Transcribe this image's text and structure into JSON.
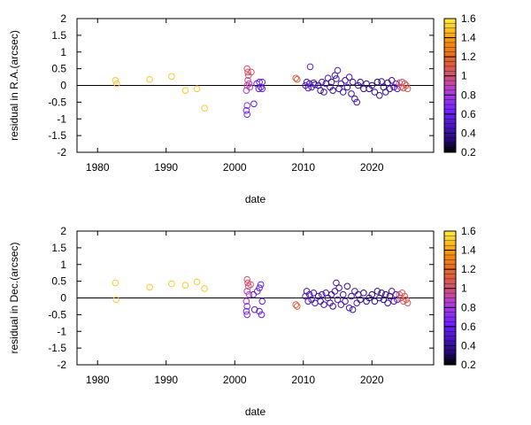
{
  "chart_data": [
    {
      "type": "scatter",
      "title": "",
      "xlabel": "date",
      "ylabel": "residual in R.A.(arcsec)",
      "xlim": [
        1977,
        2029
      ],
      "ylim": [
        -2,
        2
      ],
      "xticks": [
        {
          "v": 1980,
          "label": "1980"
        },
        {
          "v": 1990,
          "label": "1990"
        },
        {
          "v": 2000,
          "label": "2000"
        },
        {
          "v": 2010,
          "label": "2010"
        },
        {
          "v": 2020,
          "label": "2020"
        }
      ],
      "yticks": [
        {
          "v": 2,
          "label": "2"
        },
        {
          "v": 1.5,
          "label": "1.5"
        },
        {
          "v": 1,
          "label": "1"
        },
        {
          "v": 0.5,
          "label": "0.5"
        },
        {
          "v": 0,
          "label": "0"
        },
        {
          "v": -0.5,
          "label": "-0.5"
        },
        {
          "v": -1,
          "label": "-1"
        },
        {
          "v": -1.5,
          "label": "-1.5"
        },
        {
          "v": -2,
          "label": "-2"
        }
      ],
      "reference_line": 0,
      "marker": "open-circle",
      "colorbar": {
        "range": [
          0.2,
          1.6
        ],
        "ticks": [
          {
            "v": 0.2,
            "label": "0.2"
          },
          {
            "v": 0.4,
            "label": "0.4"
          },
          {
            "v": 0.6,
            "label": "0.6"
          },
          {
            "v": 0.8,
            "label": "0.8"
          },
          {
            "v": 1.0,
            "label": "1"
          },
          {
            "v": 1.2,
            "label": "1.2"
          },
          {
            "v": 1.4,
            "label": "1.4"
          },
          {
            "v": 1.6,
            "label": "1.6"
          }
        ]
      },
      "points": [
        [
          1982.6,
          0.15,
          1.5
        ],
        [
          1982.8,
          0.05,
          1.5
        ],
        [
          1987.6,
          0.18,
          1.5
        ],
        [
          1990.8,
          0.27,
          1.5
        ],
        [
          1992.8,
          -0.15,
          1.5
        ],
        [
          1994.5,
          -0.1,
          1.5
        ],
        [
          1995.6,
          -0.68,
          1.5
        ],
        [
          2001.8,
          0.5,
          1.0
        ],
        [
          2001.9,
          0.4,
          1.05
        ],
        [
          2002.0,
          0.3,
          1.0
        ],
        [
          2001.9,
          0.15,
          0.95
        ],
        [
          2002.1,
          0.05,
          0.9
        ],
        [
          2001.8,
          0.0,
          0.95
        ],
        [
          2002.2,
          -0.05,
          0.9
        ],
        [
          2001.7,
          -0.15,
          0.8
        ],
        [
          2001.8,
          -0.6,
          0.7
        ],
        [
          2001.7,
          -0.75,
          0.65
        ],
        [
          2001.8,
          -0.87,
          0.65
        ],
        [
          2002.4,
          0.4,
          1.05
        ],
        [
          2002.8,
          -0.55,
          0.55
        ],
        [
          2003.2,
          0.05,
          0.6
        ],
        [
          2003.5,
          -0.1,
          0.55
        ],
        [
          2003.8,
          -0.05,
          0.6
        ],
        [
          2003.6,
          0.1,
          0.55
        ],
        [
          2004.0,
          0.1,
          0.6
        ],
        [
          2004.0,
          -0.1,
          0.55
        ],
        [
          2008.9,
          0.22,
          1.1
        ],
        [
          2009.1,
          0.18,
          1.15
        ],
        [
          2010.3,
          0.0,
          0.5
        ],
        [
          2010.5,
          0.1,
          0.45
        ],
        [
          2010.7,
          -0.08,
          0.45
        ],
        [
          2010.9,
          0.05,
          0.5
        ],
        [
          2011.0,
          0.56,
          0.55
        ],
        [
          2011.2,
          -0.05,
          0.5
        ],
        [
          2011.5,
          0.08,
          0.45
        ],
        [
          2011.7,
          0.02,
          0.45
        ],
        [
          2012.2,
          0.0,
          0.4
        ],
        [
          2012.5,
          -0.15,
          0.4
        ],
        [
          2012.7,
          0.1,
          0.45
        ],
        [
          2013.0,
          -0.2,
          0.4
        ],
        [
          2013.3,
          0.05,
          0.45
        ],
        [
          2013.6,
          0.22,
          0.5
        ],
        [
          2013.9,
          -0.05,
          0.45
        ],
        [
          2014.1,
          0.1,
          0.4
        ],
        [
          2014.3,
          -0.15,
          0.4
        ],
        [
          2014.6,
          0.3,
          0.45
        ],
        [
          2014.8,
          0.2,
          0.45
        ],
        [
          2015.0,
          0.45,
          0.5
        ],
        [
          2015.2,
          -0.1,
          0.4
        ],
        [
          2015.5,
          0.05,
          0.45
        ],
        [
          2015.8,
          -0.2,
          0.4
        ],
        [
          2016.1,
          0.15,
          0.45
        ],
        [
          2016.4,
          -0.05,
          0.4
        ],
        [
          2016.7,
          0.25,
          0.45
        ],
        [
          2017.0,
          -0.25,
          0.4
        ],
        [
          2017.2,
          0.1,
          0.4
        ],
        [
          2017.5,
          -0.4,
          0.45
        ],
        [
          2017.8,
          -0.5,
          0.45
        ],
        [
          2018.0,
          0.0,
          0.4
        ],
        [
          2018.3,
          0.1,
          0.4
        ],
        [
          2018.8,
          -0.1,
          0.35
        ],
        [
          2019.2,
          0.05,
          0.35
        ],
        [
          2019.6,
          -0.1,
          0.35
        ],
        [
          2020.0,
          0.0,
          0.35
        ],
        [
          2020.4,
          -0.2,
          0.35
        ],
        [
          2020.8,
          0.1,
          0.35
        ],
        [
          2021.1,
          -0.3,
          0.4
        ],
        [
          2021.4,
          0.12,
          0.4
        ],
        [
          2021.7,
          -0.05,
          0.35
        ],
        [
          2022.0,
          -0.2,
          0.35
        ],
        [
          2022.3,
          0.08,
          0.35
        ],
        [
          2022.6,
          -0.1,
          0.4
        ],
        [
          2022.9,
          0.15,
          0.4
        ],
        [
          2023.2,
          -0.05,
          0.45
        ],
        [
          2023.5,
          0.05,
          0.5
        ],
        [
          2023.7,
          -0.1,
          0.55
        ],
        [
          2024.0,
          0.08,
          1.05
        ],
        [
          2024.2,
          -0.05,
          1.1
        ],
        [
          2024.4,
          0.1,
          1.05
        ],
        [
          2024.6,
          -0.08,
          1.1
        ],
        [
          2024.8,
          0.05,
          1.05
        ],
        [
          2025.0,
          0.0,
          1.1
        ],
        [
          2025.2,
          -0.1,
          1.05
        ]
      ]
    },
    {
      "type": "scatter",
      "title": "",
      "xlabel": "date",
      "ylabel": "residual in Dec.(arcsec)",
      "xlim": [
        1977,
        2029
      ],
      "ylim": [
        -2,
        2
      ],
      "xticks": [
        {
          "v": 1980,
          "label": "1980"
        },
        {
          "v": 1990,
          "label": "1990"
        },
        {
          "v": 2000,
          "label": "2000"
        },
        {
          "v": 2010,
          "label": "2010"
        },
        {
          "v": 2020,
          "label": "2020"
        }
      ],
      "yticks": [
        {
          "v": 2,
          "label": "2"
        },
        {
          "v": 1.5,
          "label": "1.5"
        },
        {
          "v": 1,
          "label": "1"
        },
        {
          "v": 0.5,
          "label": "0.5"
        },
        {
          "v": 0,
          "label": "0"
        },
        {
          "v": -0.5,
          "label": "-0.5"
        },
        {
          "v": -1,
          "label": "-1"
        },
        {
          "v": -1.5,
          "label": "-1.5"
        },
        {
          "v": -2,
          "label": "-2"
        }
      ],
      "reference_line": 0,
      "marker": "open-circle",
      "colorbar": {
        "range": [
          0.2,
          1.6
        ],
        "ticks": [
          {
            "v": 0.2,
            "label": "0.2"
          },
          {
            "v": 0.4,
            "label": "0.4"
          },
          {
            "v": 0.6,
            "label": "0.6"
          },
          {
            "v": 0.8,
            "label": "0.8"
          },
          {
            "v": 1.0,
            "label": "1"
          },
          {
            "v": 1.2,
            "label": "1.2"
          },
          {
            "v": 1.4,
            "label": "1.4"
          },
          {
            "v": 1.6,
            "label": "1.6"
          }
        ]
      },
      "points": [
        [
          1982.6,
          0.45,
          1.5
        ],
        [
          1982.7,
          -0.05,
          1.5
        ],
        [
          1987.6,
          0.32,
          1.5
        ],
        [
          1990.8,
          0.42,
          1.5
        ],
        [
          1992.8,
          0.38,
          1.5
        ],
        [
          1994.5,
          0.48,
          1.5
        ],
        [
          1995.6,
          0.28,
          1.5
        ],
        [
          2001.8,
          0.55,
          1.05
        ],
        [
          2001.9,
          0.45,
          1.0
        ],
        [
          2002.0,
          0.35,
          1.0
        ],
        [
          2001.8,
          0.2,
          0.9
        ],
        [
          2002.1,
          0.1,
          0.9
        ],
        [
          2001.7,
          -0.1,
          0.8
        ],
        [
          2001.8,
          -0.25,
          0.7
        ],
        [
          2001.7,
          -0.4,
          0.65
        ],
        [
          2001.8,
          -0.5,
          0.65
        ],
        [
          2002.3,
          0.4,
          1.05
        ],
        [
          2002.7,
          0.1,
          0.55
        ],
        [
          2002.9,
          -0.35,
          0.55
        ],
        [
          2003.3,
          0.2,
          0.6
        ],
        [
          2003.6,
          0.3,
          0.55
        ],
        [
          2003.8,
          0.4,
          0.6
        ],
        [
          2003.6,
          -0.4,
          0.55
        ],
        [
          2003.9,
          -0.5,
          0.6
        ],
        [
          2004.0,
          -0.1,
          0.55
        ],
        [
          2008.9,
          -0.2,
          1.1
        ],
        [
          2009.1,
          -0.25,
          1.15
        ],
        [
          2010.3,
          0.05,
          0.5
        ],
        [
          2010.5,
          0.2,
          0.45
        ],
        [
          2010.7,
          -0.1,
          0.45
        ],
        [
          2010.9,
          0.1,
          0.5
        ],
        [
          2011.2,
          -0.05,
          0.5
        ],
        [
          2011.5,
          0.15,
          0.45
        ],
        [
          2011.7,
          -0.15,
          0.45
        ],
        [
          2012.2,
          0.05,
          0.4
        ],
        [
          2012.5,
          -0.1,
          0.4
        ],
        [
          2012.7,
          0.1,
          0.45
        ],
        [
          2013.0,
          -0.2,
          0.4
        ],
        [
          2013.3,
          0.15,
          0.45
        ],
        [
          2013.6,
          0.0,
          0.5
        ],
        [
          2013.9,
          -0.15,
          0.45
        ],
        [
          2014.1,
          0.1,
          0.4
        ],
        [
          2014.3,
          -0.25,
          0.4
        ],
        [
          2014.6,
          0.2,
          0.45
        ],
        [
          2014.8,
          0.45,
          0.45
        ],
        [
          2015.0,
          -0.05,
          0.5
        ],
        [
          2015.2,
          0.3,
          0.4
        ],
        [
          2015.5,
          -0.2,
          0.45
        ],
        [
          2015.8,
          0.1,
          0.4
        ],
        [
          2016.1,
          -0.1,
          0.45
        ],
        [
          2016.4,
          0.35,
          0.4
        ],
        [
          2016.7,
          -0.3,
          0.45
        ],
        [
          2017.0,
          0.05,
          0.4
        ],
        [
          2017.2,
          -0.35,
          0.4
        ],
        [
          2017.5,
          0.2,
          0.45
        ],
        [
          2017.8,
          -0.15,
          0.45
        ],
        [
          2018.0,
          0.1,
          0.4
        ],
        [
          2018.3,
          -0.05,
          0.4
        ],
        [
          2018.8,
          0.15,
          0.35
        ],
        [
          2019.2,
          -0.1,
          0.35
        ],
        [
          2019.6,
          0.0,
          0.35
        ],
        [
          2020.0,
          0.1,
          0.35
        ],
        [
          2020.4,
          -0.1,
          0.35
        ],
        [
          2020.8,
          0.2,
          0.35
        ],
        [
          2021.1,
          0.0,
          0.4
        ],
        [
          2021.4,
          0.15,
          0.4
        ],
        [
          2021.7,
          -0.05,
          0.35
        ],
        [
          2022.0,
          0.1,
          0.35
        ],
        [
          2022.3,
          -0.15,
          0.35
        ],
        [
          2022.6,
          0.05,
          0.4
        ],
        [
          2022.9,
          0.2,
          0.4
        ],
        [
          2023.2,
          -0.1,
          0.45
        ],
        [
          2023.5,
          0.1,
          0.5
        ],
        [
          2023.7,
          -0.05,
          0.55
        ],
        [
          2024.0,
          0.1,
          1.05
        ],
        [
          2024.2,
          0.0,
          1.1
        ],
        [
          2024.4,
          0.15,
          1.05
        ],
        [
          2024.6,
          -0.1,
          1.1
        ],
        [
          2024.8,
          0.05,
          1.05
        ],
        [
          2025.0,
          -0.05,
          1.1
        ],
        [
          2025.2,
          -0.15,
          1.05
        ]
      ]
    }
  ]
}
